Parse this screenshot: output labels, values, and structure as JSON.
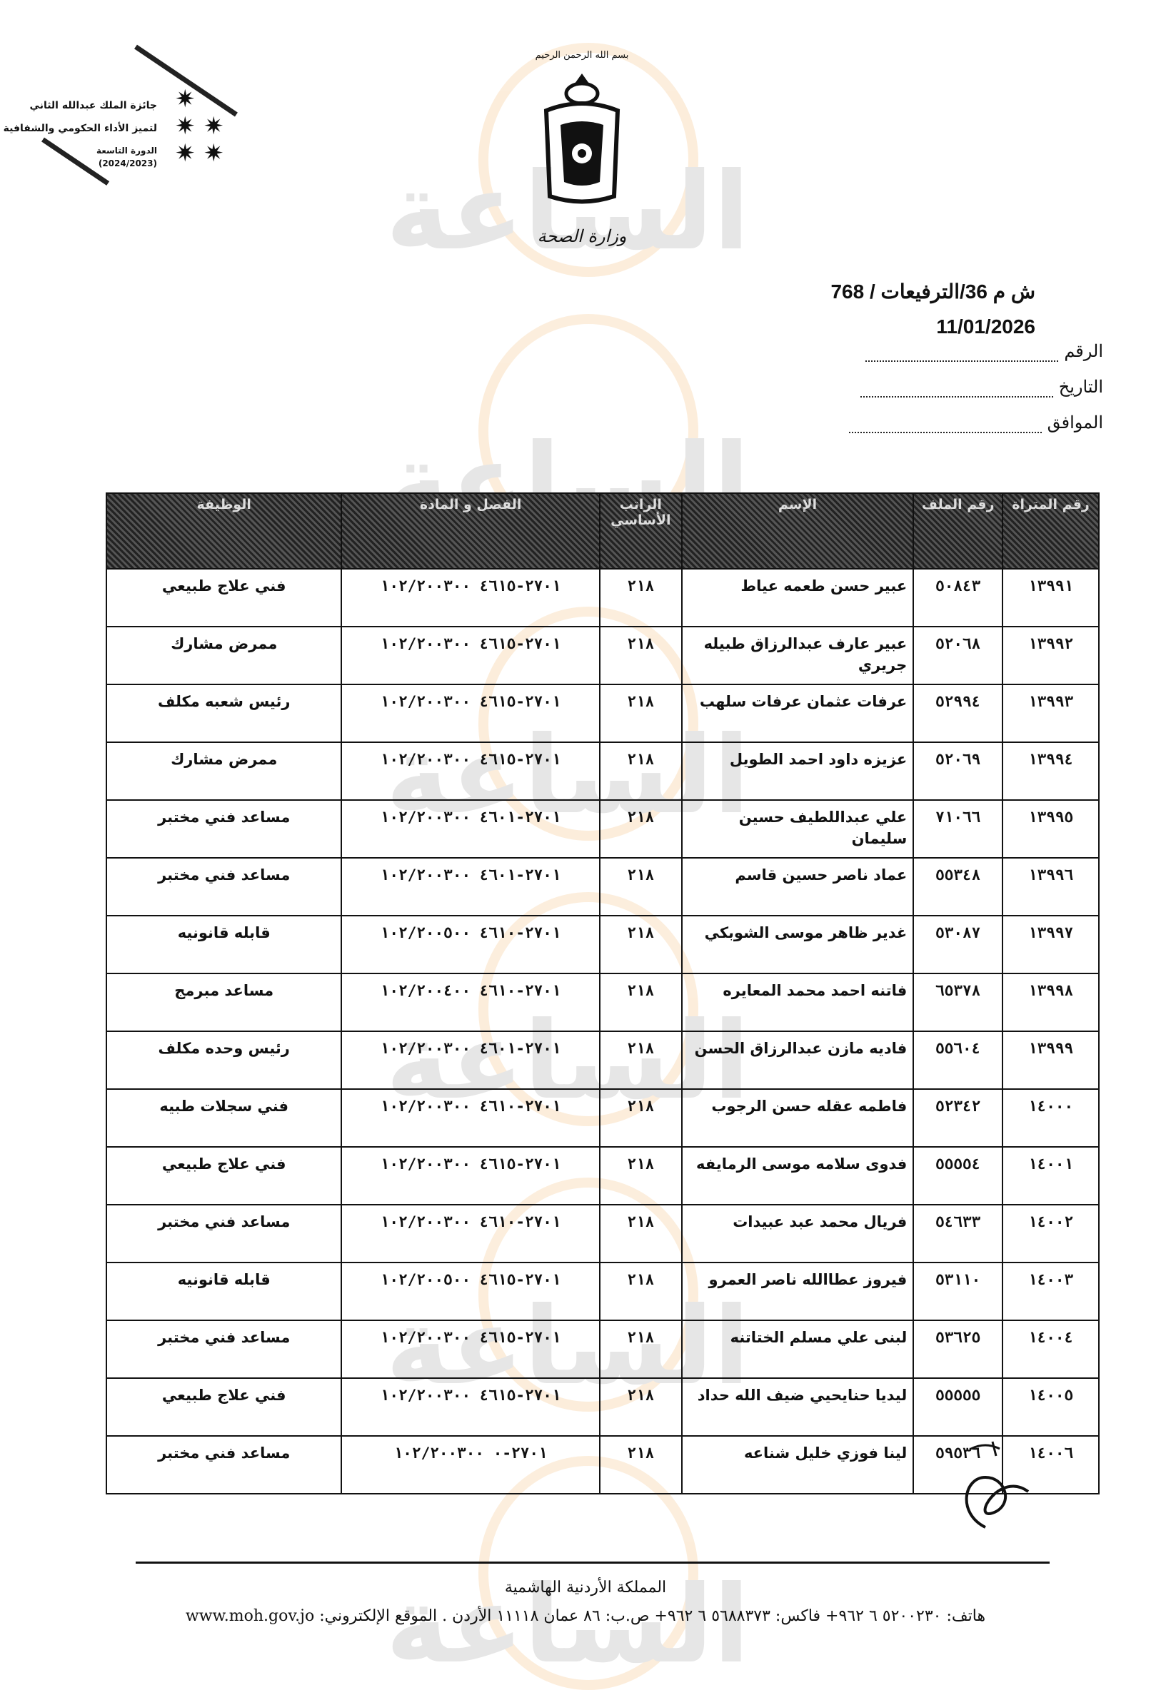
{
  "header": {
    "award": {
      "line1": "جائزة الملك عبدالله الثاني",
      "line2": "لتميز الأداء الحكومي والشفافية",
      "line3": "الدورة التاسعة",
      "line4": "(2024/2023)"
    },
    "basmala": "بسم الله الرحمن الرحيم",
    "ministry": "وزارة الصحة",
    "reference": "ش م 36/الترفيعات / 768",
    "date_value": "11/01/2026",
    "fields": [
      {
        "label": "الرقم"
      },
      {
        "label": "التاريخ"
      },
      {
        "label": "الموافق"
      }
    ]
  },
  "watermark": {
    "name": "مدار الساعة الإخبارية",
    "accent_color": "#f0a040"
  },
  "table": {
    "columns": [
      "رقم المتراة",
      "رقم الملف",
      "الإسم",
      "الراتب الأساسي",
      "الفصل و المادة",
      "الوظيفة"
    ],
    "rows": [
      {
        "serial": "١٣٩٩١",
        "file": "٥٠٨٤٣",
        "name": "عبير حسن طعمه عياط",
        "salary": "٢١٨",
        "code": "٢٧٠١-٤٦١٥ ١٠٢/٢٠٠٣٠٠",
        "job": "فني علاج طبيعي"
      },
      {
        "serial": "١٣٩٩٢",
        "file": "٥٢٠٦٨",
        "name": "عبير عارف عبدالرزاق طبيله جريري",
        "salary": "٢١٨",
        "code": "٢٧٠١-٤٦١٥ ١٠٢/٢٠٠٣٠٠",
        "job": "ممرض مشارك"
      },
      {
        "serial": "١٣٩٩٣",
        "file": "٥٢٩٩٤",
        "name": "عرفات عثمان عرفات سلهب",
        "salary": "٢١٨",
        "code": "٢٧٠١-٤٦١٥ ١٠٢/٢٠٠٣٠٠",
        "job": "رئيس شعبه مكلف"
      },
      {
        "serial": "١٣٩٩٤",
        "file": "٥٢٠٦٩",
        "name": "عزيزه داود احمد الطويل",
        "salary": "٢١٨",
        "code": "٢٧٠١-٤٦١٥ ١٠٢/٢٠٠٣٠٠",
        "job": "ممرض مشارك"
      },
      {
        "serial": "١٣٩٩٥",
        "file": "٧١٠٦٦",
        "name": "علي عبداللطيف حسين سليمان",
        "salary": "٢١٨",
        "code": "٢٧٠١-٤٦٠١ ١٠٢/٢٠٠٣٠٠",
        "job": "مساعد فني مختبر"
      },
      {
        "serial": "١٣٩٩٦",
        "file": "٥٥٣٤٨",
        "name": "عماد ناصر حسين قاسم",
        "salary": "٢١٨",
        "code": "٢٧٠١-٤٦٠١ ١٠٢/٢٠٠٣٠٠",
        "job": "مساعد فني مختبر"
      },
      {
        "serial": "١٣٩٩٧",
        "file": "٥٣٠٨٧",
        "name": "غدير ظاهر موسى الشوبكي",
        "salary": "٢١٨",
        "code": "٢٧٠١-٤٦١٠ ١٠٢/٢٠٠٥٠٠",
        "job": "قابله قانونيه"
      },
      {
        "serial": "١٣٩٩٨",
        "file": "٦٥٣٧٨",
        "name": "فاتنه احمد محمد المعايره",
        "salary": "٢١٨",
        "code": "٢٧٠١-٤٦١٠ ١٠٢/٢٠٠٤٠٠",
        "job": "مساعد مبرمج"
      },
      {
        "serial": "١٣٩٩٩",
        "file": "٥٥٦٠٤",
        "name": "فاديه مازن عبدالرزاق الحسن",
        "salary": "٢١٨",
        "code": "٢٧٠١-٤٦٠١ ١٠٢/٢٠٠٣٠٠",
        "job": "رئيس وحده مكلف"
      },
      {
        "serial": "١٤٠٠٠",
        "file": "٥٢٣٤٢",
        "name": "فاطمه عقله حسن الرجوب",
        "salary": "٢١٨",
        "code": "٢٧٠١-٤٦١٠ ١٠٢/٢٠٠٣٠٠",
        "job": "فني سجلات طبيه"
      },
      {
        "serial": "١٤٠٠١",
        "file": "٥٥٥٥٤",
        "name": "فدوى سلامه موسى الرمايفه",
        "salary": "٢١٨",
        "code": "٢٧٠١-٤٦١٥ ١٠٢/٢٠٠٣٠٠",
        "job": "فني علاج طبيعي"
      },
      {
        "serial": "١٤٠٠٢",
        "file": "٥٤٦٣٣",
        "name": "فريال محمد عبد عبيدات",
        "salary": "٢١٨",
        "code": "٢٧٠١-٤٦١٠ ١٠٢/٢٠٠٣٠٠",
        "job": "مساعد فني مختبر"
      },
      {
        "serial": "١٤٠٠٣",
        "file": "٥٣١١٠",
        "name": "فيروز عطاالله ناصر العمرو",
        "salary": "٢١٨",
        "code": "٢٧٠١-٤٦١٥ ١٠٢/٢٠٠٥٠٠",
        "job": "قابله قانونيه"
      },
      {
        "serial": "١٤٠٠٤",
        "file": "٥٣٦٢٥",
        "name": "لبنى علي مسلم الختاتنه",
        "salary": "٢١٨",
        "code": "٢٧٠١-٤٦١٥ ١٠٢/٢٠٠٣٠٠",
        "job": "مساعد فني مختبر"
      },
      {
        "serial": "١٤٠٠٥",
        "file": "٥٥٥٥٥",
        "name": "ليديا حنايحيي ضيف الله حداد",
        "salary": "٢١٨",
        "code": "٢٧٠١-٤٦١٥ ١٠٢/٢٠٠٣٠٠",
        "job": "فني علاج طبيعي"
      },
      {
        "serial": "١٤٠٠٦",
        "file": "٥٩٥٣٦",
        "name": "لينا فوزي خليل شناعه",
        "salary": "٢١٨",
        "code": "٢٧٠١-٠ ١٠٢/٢٠٠٣٠٠",
        "job": "مساعد فني مختبر"
      }
    ]
  },
  "footer": {
    "kingdom": "المملكة الأردنية الهاشمية",
    "contact": "هاتف: ٥٢٠٠٢٣٠ ٦ ٩٦٢+ فاكس: ٥٦٨٨٣٧٣ ٦ ٩٦٢+ ص.ب: ٨٦ عمان ١١١١٨ الأردن . الموقع الإلكتروني: www.moh.gov.jo"
  }
}
